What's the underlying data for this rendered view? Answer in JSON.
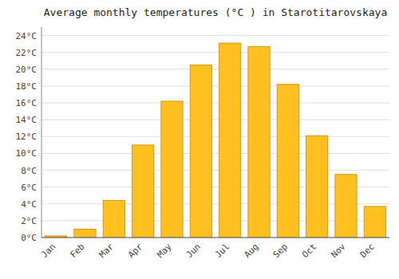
{
  "chart_data": {
    "type": "bar",
    "title": "Average monthly temperatures (°C ) in Starotitarovskaya",
    "categories": [
      "Jan",
      "Feb",
      "Mar",
      "Apr",
      "May",
      "Jun",
      "Jul",
      "Aug",
      "Sep",
      "Oct",
      "Nov",
      "Dec"
    ],
    "values": [
      0.2,
      1.0,
      4.4,
      11.0,
      16.2,
      20.5,
      23.1,
      22.7,
      18.2,
      12.1,
      7.5,
      3.7
    ],
    "color": "#FFC020",
    "ylim": [
      0,
      25
    ],
    "yticks": [
      {
        "value": 0,
        "label": "0°C"
      },
      {
        "value": 2,
        "label": "2°C"
      },
      {
        "value": 4,
        "label": "4°C"
      },
      {
        "value": 6,
        "label": "6°C"
      },
      {
        "value": 8,
        "label": "8°C"
      },
      {
        "value": 10,
        "label": "10°C"
      },
      {
        "value": 12,
        "label": "12°C"
      },
      {
        "value": 14,
        "label": "14°C"
      },
      {
        "value": 16,
        "label": "16°C"
      },
      {
        "value": 18,
        "label": "18°C"
      },
      {
        "value": 20,
        "label": "20°C"
      },
      {
        "value": 22,
        "label": "22°C"
      },
      {
        "value": 24,
        "label": "24°C"
      }
    ],
    "grid": true
  }
}
